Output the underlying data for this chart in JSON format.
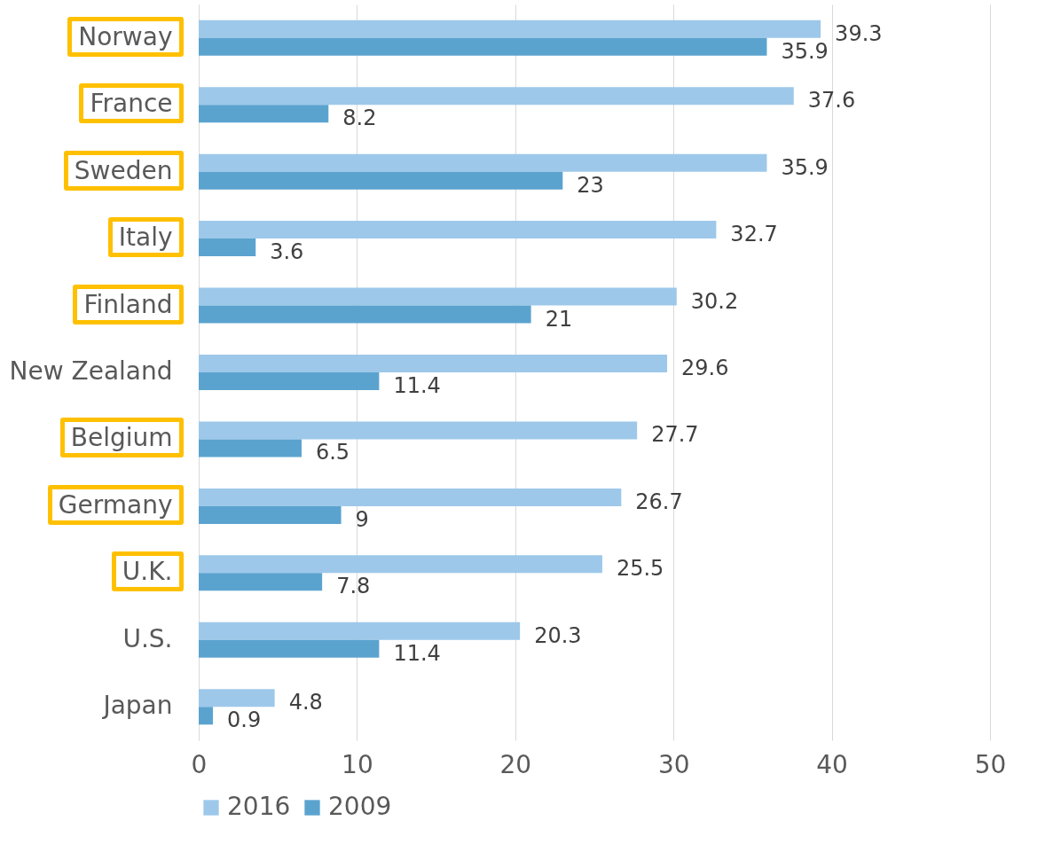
{
  "chart_data": {
    "type": "bar",
    "orientation": "horizontal",
    "categories": [
      "Norway",
      "France",
      "Sweden",
      "Italy",
      "Finland",
      "New Zealand",
      "Belgium",
      "Germany",
      "U.K.",
      "U.S.",
      "Japan"
    ],
    "series": [
      {
        "name": "2016",
        "color": "#9dc8ea",
        "values": [
          39.3,
          37.6,
          35.9,
          32.7,
          30.2,
          29.6,
          27.7,
          26.7,
          25.5,
          20.3,
          4.8
        ]
      },
      {
        "name": "2009",
        "color": "#5ba3cf",
        "values": [
          35.9,
          8.2,
          23,
          3.6,
          21,
          11.4,
          6.5,
          9,
          7.8,
          11.4,
          0.9
        ]
      }
    ],
    "xlim": [
      0,
      50
    ],
    "xticks": [
      0,
      10,
      20,
      30,
      40,
      50
    ],
    "grid": "x",
    "legend": "bottom",
    "data_labels": true
  }
}
